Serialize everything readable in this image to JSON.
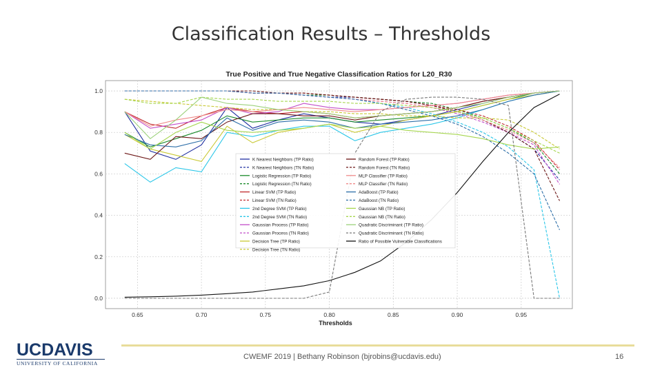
{
  "slide": {
    "title": "Classification Results – Thresholds",
    "footer": "CWEMF 2019 | Bethany Robinson (bjrobins@ucdavis.edu)",
    "page_number": "16",
    "logo_text": "UCDAVIS",
    "logo_subtext": "UNIVERSITY OF CALIFORNIA"
  },
  "chart_data": {
    "type": "line",
    "title": "True Positive and True Negative Classification Ratios for L20_R30",
    "xlabel": "Thresholds",
    "ylabel": "",
    "xlim": [
      0.625,
      0.99
    ],
    "ylim": [
      -0.05,
      1.05
    ],
    "xticks": [
      "0.65",
      "0.70",
      "0.75",
      "0.80",
      "0.85",
      "0.90",
      "0.95"
    ],
    "yticks": [
      "0.0",
      "0.2",
      "0.4",
      "0.6",
      "0.8",
      "1.0"
    ],
    "grid": true,
    "legend_position": "center-left",
    "x": [
      0.64,
      0.66,
      0.68,
      0.7,
      0.72,
      0.74,
      0.76,
      0.78,
      0.8,
      0.82,
      0.84,
      0.86,
      0.88,
      0.9,
      0.92,
      0.94,
      0.96,
      0.98
    ],
    "series": [
      {
        "name": "K Nearest Neighbors (TP Ratio)",
        "color": "#1f2fa0",
        "dash": "solid",
        "values": [
          0.9,
          0.71,
          0.67,
          0.74,
          0.92,
          0.82,
          0.86,
          0.89,
          0.87,
          0.85,
          0.84,
          0.86,
          0.88,
          0.91,
          0.94,
          0.97,
          0.99,
          1.0
        ]
      },
      {
        "name": "K Nearest Neighbors (TN Ratio)",
        "color": "#1f2fa0",
        "dash": "dashed",
        "values": [
          1.0,
          1.0,
          1.0,
          1.0,
          1.0,
          0.99,
          0.99,
          0.98,
          0.97,
          0.97,
          0.96,
          0.95,
          0.93,
          0.9,
          0.86,
          0.8,
          0.72,
          0.57
        ]
      },
      {
        "name": "Logistic Regression (TP Ratio)",
        "color": "#1a8a2a",
        "dash": "solid",
        "values": [
          0.8,
          0.73,
          0.77,
          0.81,
          0.88,
          0.85,
          0.86,
          0.87,
          0.87,
          0.85,
          0.86,
          0.87,
          0.88,
          0.9,
          0.93,
          0.96,
          0.99,
          1.0
        ]
      },
      {
        "name": "Logistic Regression (TN Ratio)",
        "color": "#1a8a2a",
        "dash": "dashed",
        "values": [
          1.0,
          1.0,
          1.0,
          1.0,
          1.0,
          0.99,
          0.99,
          0.98,
          0.98,
          0.97,
          0.96,
          0.95,
          0.94,
          0.91,
          0.87,
          0.82,
          0.75,
          0.6
        ]
      },
      {
        "name": "Linear SVM (TP Ratio)",
        "color": "#c0282d",
        "dash": "solid",
        "values": [
          0.9,
          0.84,
          0.82,
          0.88,
          0.92,
          0.9,
          0.89,
          0.9,
          0.89,
          0.87,
          0.88,
          0.89,
          0.9,
          0.92,
          0.95,
          0.97,
          0.99,
          1.0
        ]
      },
      {
        "name": "Linear SVM (TN Ratio)",
        "color": "#c0282d",
        "dash": "dashed",
        "values": [
          1.0,
          1.0,
          1.0,
          1.0,
          1.0,
          0.99,
          0.99,
          0.99,
          0.98,
          0.97,
          0.96,
          0.95,
          0.93,
          0.91,
          0.88,
          0.83,
          0.76,
          0.62
        ]
      },
      {
        "name": "2nd Degree SVM (TP Ratio)",
        "color": "#29c6e8",
        "dash": "solid",
        "values": [
          0.65,
          0.56,
          0.63,
          0.61,
          0.8,
          0.78,
          0.81,
          0.83,
          0.83,
          0.76,
          0.8,
          0.82,
          0.84,
          0.87,
          0.91,
          0.95,
          0.98,
          1.0
        ]
      },
      {
        "name": "2nd Degree SVM (TN Ratio)",
        "color": "#29c6e8",
        "dash": "dashed",
        "values": [
          1.0,
          1.0,
          1.0,
          1.0,
          1.0,
          0.99,
          0.99,
          0.98,
          0.97,
          0.96,
          0.94,
          0.92,
          0.89,
          0.85,
          0.8,
          0.73,
          0.62,
          0.0
        ]
      },
      {
        "name": "Gaussian Process (TP Ratio)",
        "color": "#c24cc8",
        "dash": "solid",
        "values": [
          0.9,
          0.82,
          0.84,
          0.86,
          0.92,
          0.89,
          0.9,
          0.94,
          0.92,
          0.91,
          0.91,
          0.92,
          0.93,
          0.94,
          0.96,
          0.98,
          0.99,
          1.0
        ]
      },
      {
        "name": "Gaussian Process (TN Ratio)",
        "color": "#c24cc8",
        "dash": "dashed",
        "values": [
          1.0,
          1.0,
          1.0,
          1.0,
          1.0,
          0.99,
          0.99,
          0.98,
          0.97,
          0.96,
          0.95,
          0.94,
          0.92,
          0.89,
          0.85,
          0.8,
          0.74,
          0.55
        ]
      },
      {
        "name": "Decision Tree (TP Ratio)",
        "color": "#c8c832",
        "dash": "solid",
        "values": [
          0.79,
          0.72,
          0.69,
          0.66,
          0.83,
          0.75,
          0.8,
          0.82,
          0.84,
          0.8,
          0.83,
          0.86,
          0.88,
          0.9,
          0.93,
          0.96,
          0.98,
          1.0
        ]
      },
      {
        "name": "Decision Tree (TN Ratio)",
        "color": "#c8c832",
        "dash": "dashed",
        "values": [
          0.96,
          0.95,
          0.94,
          0.93,
          0.92,
          0.91,
          0.91,
          0.9,
          0.9,
          0.89,
          0.89,
          0.88,
          0.88,
          0.87,
          0.87,
          0.86,
          0.8,
          0.72
        ]
      },
      {
        "name": "Random Forest (TP Ratio)",
        "color": "#6b1414",
        "dash": "solid",
        "values": [
          0.7,
          0.67,
          0.78,
          0.77,
          0.85,
          0.89,
          0.89,
          0.88,
          0.88,
          0.86,
          0.88,
          0.89,
          0.9,
          0.92,
          0.95,
          0.97,
          0.99,
          1.0
        ]
      },
      {
        "name": "Random Forest (TN Ratio)",
        "color": "#6b1414",
        "dash": "dashed",
        "values": [
          1.0,
          1.0,
          1.0,
          1.0,
          1.0,
          1.0,
          0.99,
          0.99,
          0.98,
          0.97,
          0.96,
          0.95,
          0.93,
          0.9,
          0.86,
          0.8,
          0.72,
          0.47
        ]
      },
      {
        "name": "MLP Classifier (TP Ratio)",
        "color": "#f08a8a",
        "dash": "solid",
        "values": [
          0.9,
          0.83,
          0.86,
          0.88,
          0.91,
          0.9,
          0.91,
          0.92,
          0.91,
          0.9,
          0.91,
          0.92,
          0.93,
          0.94,
          0.96,
          0.98,
          0.99,
          1.0
        ]
      },
      {
        "name": "MLP Classifier (TN Ratio)",
        "color": "#f08a8a",
        "dash": "dashed",
        "values": [
          1.0,
          1.0,
          1.0,
          1.0,
          1.0,
          0.99,
          0.99,
          0.98,
          0.97,
          0.96,
          0.95,
          0.94,
          0.92,
          0.9,
          0.86,
          0.81,
          0.75,
          0.63
        ]
      },
      {
        "name": "AdaBoost (TP Ratio)",
        "color": "#2c6ea8",
        "dash": "solid",
        "values": [
          0.79,
          0.74,
          0.73,
          0.76,
          0.87,
          0.81,
          0.85,
          0.86,
          0.85,
          0.82,
          0.84,
          0.85,
          0.86,
          0.88,
          0.91,
          0.95,
          0.98,
          1.0
        ]
      },
      {
        "name": "AdaBoost (TN Ratio)",
        "color": "#2c6ea8",
        "dash": "dashed",
        "values": [
          1.0,
          1.0,
          1.0,
          1.0,
          1.0,
          0.99,
          0.99,
          0.98,
          0.97,
          0.96,
          0.94,
          0.91,
          0.88,
          0.84,
          0.78,
          0.7,
          0.6,
          0.33
        ]
      },
      {
        "name": "Gaussian NB (TP Ratio)",
        "color": "#a6d64e",
        "dash": "solid",
        "values": [
          0.8,
          0.72,
          0.8,
          0.85,
          0.81,
          0.8,
          0.81,
          0.82,
          0.84,
          0.82,
          0.83,
          0.81,
          0.8,
          0.79,
          0.77,
          0.74,
          0.72,
          0.73
        ]
      },
      {
        "name": "Gaussian NB (TN Ratio)",
        "color": "#a6d64e",
        "dash": "dashed",
        "values": [
          0.96,
          0.94,
          0.94,
          0.97,
          0.96,
          0.96,
          0.95,
          0.95,
          0.95,
          0.94,
          0.94,
          0.93,
          0.92,
          0.9,
          0.87,
          0.82,
          0.76,
          0.7
        ]
      },
      {
        "name": "Quadratic Discriminant (TP Ratio)",
        "color": "#9bd17a",
        "dash": "solid",
        "values": [
          0.9,
          0.77,
          0.86,
          0.97,
          0.94,
          0.93,
          0.91,
          0.9,
          0.89,
          0.87,
          0.88,
          0.89,
          0.9,
          0.92,
          0.94,
          0.97,
          0.99,
          1.0
        ]
      },
      {
        "name": "Quadratic Discriminant (TN Ratio)",
        "color": "#7a7a7a",
        "dash": "dashed",
        "values": [
          0.0,
          0.0,
          0.0,
          0.0,
          0.0,
          0.0,
          0.0,
          0.0,
          0.03,
          0.7,
          0.9,
          0.96,
          0.97,
          0.97,
          0.96,
          0.93,
          0.0,
          0.0
        ]
      },
      {
        "name": "Ratio of Possible Vulnerable Classifications",
        "color": "#111111",
        "dash": "solid",
        "values": [
          0.005,
          0.007,
          0.01,
          0.015,
          0.022,
          0.03,
          0.045,
          0.06,
          0.085,
          0.125,
          0.18,
          0.27,
          0.38,
          0.51,
          0.66,
          0.8,
          0.92,
          0.985
        ]
      }
    ]
  }
}
